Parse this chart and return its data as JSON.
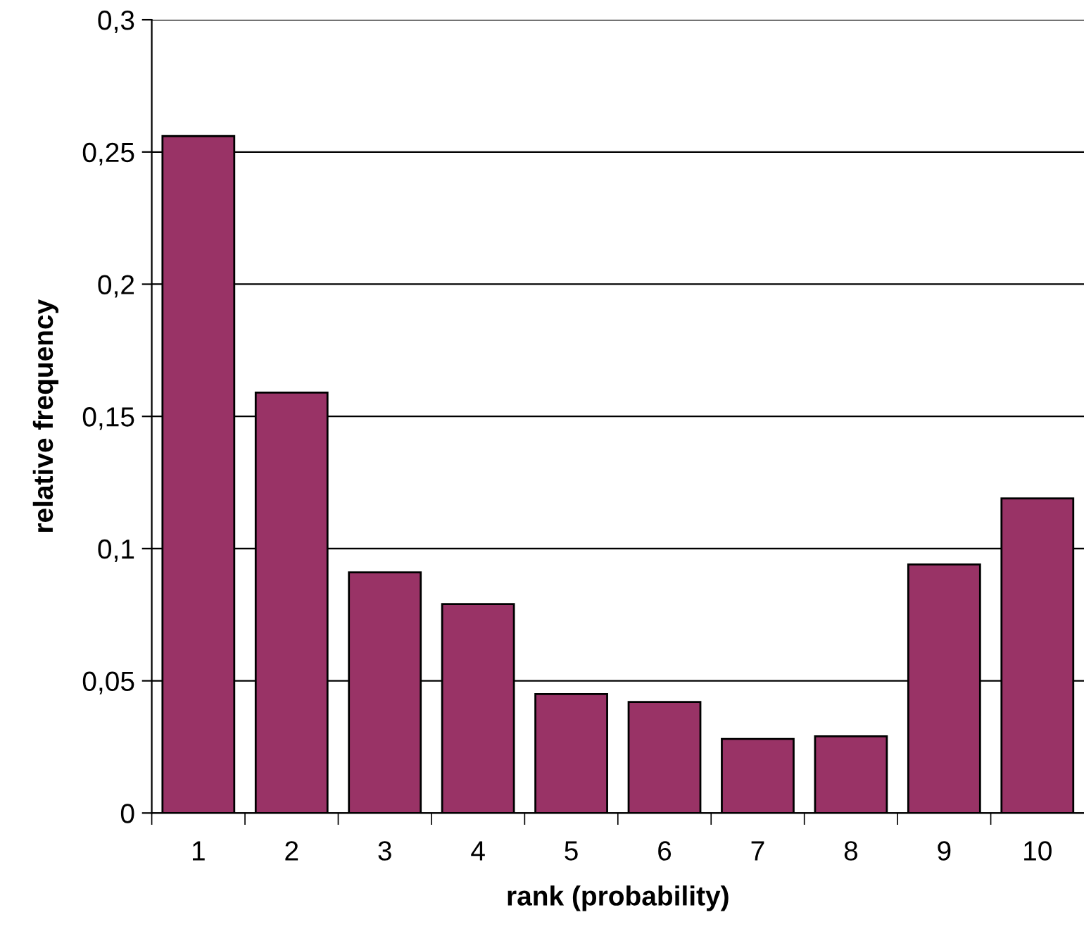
{
  "chart_data": {
    "type": "bar",
    "xlabel": "rank (probability)",
    "ylabel": "relative frequency",
    "categories": [
      "1",
      "2",
      "3",
      "4",
      "5",
      "6",
      "7",
      "8",
      "9",
      "10"
    ],
    "values": [
      0.256,
      0.159,
      0.091,
      0.079,
      0.045,
      0.042,
      0.028,
      0.029,
      0.094,
      0.119
    ],
    "color": "#993366",
    "ylim": [
      0,
      0.3
    ],
    "yticks": [
      0,
      {
        "value": 0.05,
        "label": "0,05"
      },
      {
        "value": 0.1,
        "label": "0,1"
      },
      {
        "value": 0.15,
        "label": "0,15"
      },
      {
        "value": 0.2,
        "label": "0,2"
      },
      {
        "value": 0.25,
        "label": "0,25"
      },
      {
        "value": 0.3,
        "label": "0,3"
      }
    ],
    "grid": "y",
    "legend": false
  }
}
